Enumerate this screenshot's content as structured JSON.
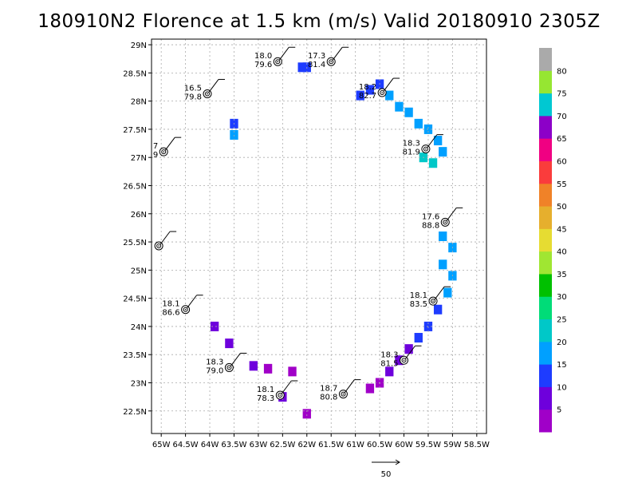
{
  "title": "180910N2 Florence at 1.5 km (m/s) Valid 20180910 2305Z",
  "map": {
    "lon_range": [
      -65.2,
      -58.3
    ],
    "lat_range": [
      22.1,
      29.1
    ],
    "lon_ticks": [
      "65W",
      "64.5W",
      "64W",
      "63.5W",
      "63W",
      "62.5W",
      "62W",
      "61.5W",
      "61W",
      "60.5W",
      "60W",
      "59.5W",
      "59W",
      "58.5W"
    ],
    "lat_ticks": [
      "22.5N",
      "23N",
      "23.5N",
      "24N",
      "24.5N",
      "25N",
      "25.5N",
      "26N",
      "26.5N",
      "27N",
      "27.5N",
      "28N",
      "28.5N",
      "29N"
    ],
    "grid": true
  },
  "colorbar": {
    "labels": [
      "5",
      "10",
      "15",
      "20",
      "25",
      "30",
      "35",
      "40",
      "45",
      "50",
      "55",
      "60",
      "65",
      "70",
      "75",
      "80"
    ],
    "colors": [
      "#a000c8",
      "#6e00dc",
      "#1e3cff",
      "#00a0ff",
      "#00c8c8",
      "#00dc78",
      "#00c000",
      "#a0e632",
      "#e6dc32",
      "#e6af2d",
      "#f08228",
      "#fa3c3c",
      "#f00082",
      "#8c00c8",
      "#00c8d2",
      "#96e632",
      "#aaaaaa"
    ]
  },
  "scale_label": "50",
  "dropsondes": [
    {
      "lon": -62.6,
      "lat": 28.7,
      "t1": "18.0",
      "t2": "79.6"
    },
    {
      "lon": -61.5,
      "lat": 28.7,
      "t1": "17.3",
      "t2": "81.4"
    },
    {
      "lon": -64.05,
      "lat": 28.13,
      "t1": "16.5",
      "t2": "79.8"
    },
    {
      "lon": -60.45,
      "lat": 28.15,
      "t1": "18.2",
      "t2": "82.7"
    },
    {
      "lon": -64.95,
      "lat": 27.1,
      "t1": "7",
      "t2": "9"
    },
    {
      "lon": -59.55,
      "lat": 27.15,
      "t1": "18.3",
      "t2": "81.9"
    },
    {
      "lon": -59.15,
      "lat": 25.85,
      "t1": "17.6",
      "t2": "88.8"
    },
    {
      "lon": -65.05,
      "lat": 25.43,
      "t1": "",
      "t2": ""
    },
    {
      "lon": -59.4,
      "lat": 24.45,
      "t1": "18.1",
      "t2": "83.5"
    },
    {
      "lon": -64.5,
      "lat": 24.3,
      "t1": "18.1",
      "t2": "86.6"
    },
    {
      "lon": -60.0,
      "lat": 23.4,
      "t1": "18.3",
      "t2": "81.5"
    },
    {
      "lon": -63.6,
      "lat": 23.27,
      "t1": "18.3",
      "t2": "79.0"
    },
    {
      "lon": -62.55,
      "lat": 22.78,
      "t1": "18.1",
      "t2": "78.3"
    },
    {
      "lon": -61.25,
      "lat": 22.8,
      "t1": "18.7",
      "t2": "80.8"
    }
  ],
  "wind_cells": [
    {
      "lon": -62.0,
      "lat": 28.6,
      "c": 2
    },
    {
      "lon": -62.1,
      "lat": 28.6,
      "c": 2
    },
    {
      "lon": -60.9,
      "lat": 28.1,
      "c": 2
    },
    {
      "lon": -60.7,
      "lat": 28.2,
      "c": 2
    },
    {
      "lon": -60.5,
      "lat": 28.3,
      "c": 2
    },
    {
      "lon": -60.3,
      "lat": 28.1,
      "c": 3
    },
    {
      "lon": -60.1,
      "lat": 27.9,
      "c": 3
    },
    {
      "lon": -59.9,
      "lat": 27.8,
      "c": 3
    },
    {
      "lon": -59.7,
      "lat": 27.6,
      "c": 3
    },
    {
      "lon": -59.5,
      "lat": 27.5,
      "c": 3
    },
    {
      "lon": -59.3,
      "lat": 27.3,
      "c": 3
    },
    {
      "lon": -59.2,
      "lat": 27.1,
      "c": 3
    },
    {
      "lon": -59.4,
      "lat": 26.9,
      "c": 4
    },
    {
      "lon": -59.6,
      "lat": 27.0,
      "c": 4
    },
    {
      "lon": -63.5,
      "lat": 27.6,
      "c": 2
    },
    {
      "lon": -63.5,
      "lat": 27.4,
      "c": 3
    },
    {
      "lon": -59.2,
      "lat": 25.6,
      "c": 3
    },
    {
      "lon": -59.0,
      "lat": 25.4,
      "c": 3
    },
    {
      "lon": -59.2,
      "lat": 25.1,
      "c": 3
    },
    {
      "lon": -59.0,
      "lat": 24.9,
      "c": 3
    },
    {
      "lon": -59.1,
      "lat": 24.6,
      "c": 3
    },
    {
      "lon": -59.3,
      "lat": 24.3,
      "c": 2
    },
    {
      "lon": -59.5,
      "lat": 24.0,
      "c": 2
    },
    {
      "lon": -59.7,
      "lat": 23.8,
      "c": 2
    },
    {
      "lon": -59.9,
      "lat": 23.6,
      "c": 1
    },
    {
      "lon": -60.1,
      "lat": 23.4,
      "c": 1
    },
    {
      "lon": -60.3,
      "lat": 23.2,
      "c": 1
    },
    {
      "lon": -60.5,
      "lat": 23.0,
      "c": 0
    },
    {
      "lon": -60.7,
      "lat": 22.9,
      "c": 0
    },
    {
      "lon": -63.9,
      "lat": 24.0,
      "c": 1
    },
    {
      "lon": -63.6,
      "lat": 23.7,
      "c": 1
    },
    {
      "lon": -63.1,
      "lat": 23.3,
      "c": 1
    },
    {
      "lon": -62.8,
      "lat": 23.25,
      "c": 0
    },
    {
      "lon": -62.3,
      "lat": 23.2,
      "c": 0
    },
    {
      "lon": -62.5,
      "lat": 22.75,
      "c": 1
    },
    {
      "lon": -62.0,
      "lat": 22.45,
      "c": 0
    }
  ]
}
